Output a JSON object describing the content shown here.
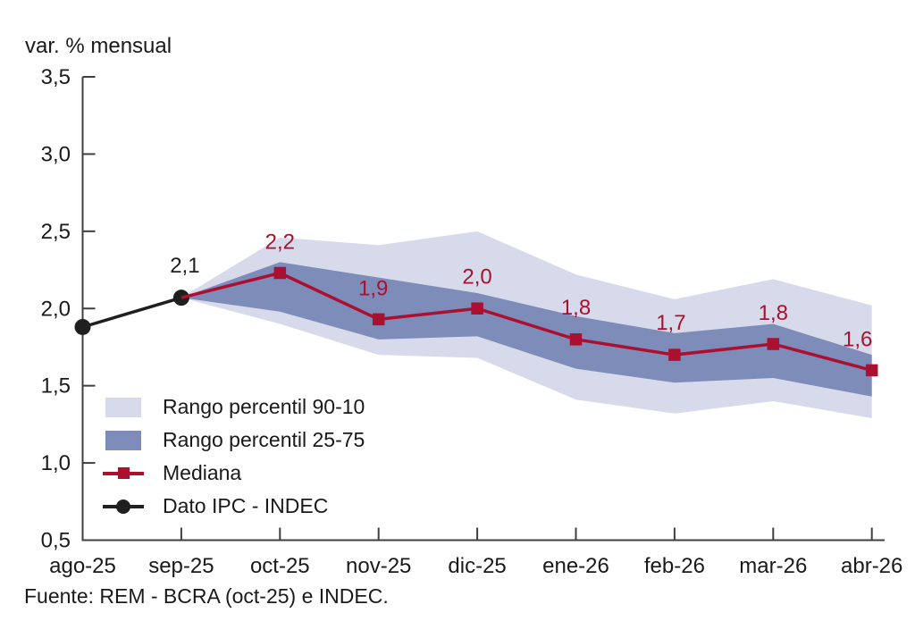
{
  "title": "var. % mensual",
  "source": "Fuente: REM - BCRA (oct-25) e INDEC.",
  "colors": {
    "band_90_10": "#D7DAEA",
    "band_25_75": "#7D8CB8",
    "mediana": "#AB1030",
    "ipc": "#1F1F1F",
    "axis": "#3F3F3F",
    "text": "#1A1A1A"
  },
  "legend": [
    {
      "icon": "band-light-swatch",
      "label": "Rango percentil 90-10"
    },
    {
      "icon": "band-dark-swatch",
      "label": "Rango percentil 25-75"
    },
    {
      "icon": "line-square-marker",
      "label": "Mediana"
    },
    {
      "icon": "line-circle-marker",
      "label": "Dato IPC - INDEC"
    }
  ],
  "chart_data": {
    "type": "line",
    "title": "var. % mensual",
    "xlabel": "",
    "ylabel": "var. % mensual",
    "ylim": [
      0.5,
      3.5
    ],
    "grid": false,
    "legend_position": "inside-bottom-left",
    "categories": [
      "ago-25",
      "sep-25",
      "oct-25",
      "nov-25",
      "dic-25",
      "ene-26",
      "feb-26",
      "mar-26",
      "abr-26"
    ],
    "y_ticks": [
      {
        "v": 3.5,
        "label": "3,5"
      },
      {
        "v": 3.0,
        "label": "3,0"
      },
      {
        "v": 2.5,
        "label": "2,5"
      },
      {
        "v": 2.0,
        "label": "2,0"
      },
      {
        "v": 1.5,
        "label": "1,5"
      },
      {
        "v": 1.0,
        "label": "1,0"
      },
      {
        "v": 0.5,
        "label": "0,5"
      }
    ],
    "bands": [
      {
        "name": "Rango percentil 90-10",
        "x": [
          1,
          2,
          3,
          4,
          5,
          6,
          7,
          8
        ],
        "upper": [
          2.07,
          2.46,
          2.41,
          2.5,
          2.22,
          2.06,
          2.19,
          2.02
        ],
        "lower": [
          2.07,
          1.9,
          1.7,
          1.68,
          1.41,
          1.32,
          1.4,
          1.29
        ]
      },
      {
        "name": "Rango percentil 25-75",
        "x": [
          1,
          2,
          3,
          4,
          5,
          6,
          7,
          8
        ],
        "upper": [
          2.07,
          2.3,
          2.2,
          2.1,
          1.95,
          1.84,
          1.9,
          1.7
        ],
        "lower": [
          2.07,
          1.98,
          1.8,
          1.82,
          1.61,
          1.52,
          1.55,
          1.43
        ]
      }
    ],
    "series": [
      {
        "name": "Dato IPC - INDEC",
        "marker": "circle",
        "color_key": "ipc",
        "x": [
          0,
          1
        ],
        "values": [
          1.88,
          2.07
        ],
        "point_labels": [
          {
            "x": 1,
            "text": "2,1",
            "dx": 4,
            "dy": -28
          }
        ]
      },
      {
        "name": "Mediana",
        "marker": "square",
        "color_key": "mediana",
        "x": [
          1,
          2,
          3,
          4,
          5,
          6,
          7,
          8
        ],
        "values": [
          2.07,
          2.23,
          1.93,
          2.0,
          1.8,
          1.7,
          1.77,
          1.6
        ],
        "point_labels": [
          {
            "x": 2,
            "text": "2,2",
            "dx": 0,
            "dy": -27
          },
          {
            "x": 3,
            "text": "1,9",
            "dx": -6,
            "dy": -27
          },
          {
            "x": 4,
            "text": "2,0",
            "dx": 0,
            "dy": -28
          },
          {
            "x": 5,
            "text": "1,8",
            "dx": 0,
            "dy": -28
          },
          {
            "x": 6,
            "text": "1,7",
            "dx": -4,
            "dy": -28
          },
          {
            "x": 7,
            "text": "1,8",
            "dx": 0,
            "dy": -27
          },
          {
            "x": 8,
            "text": "1,6",
            "dx": -16,
            "dy": -27
          }
        ]
      }
    ]
  }
}
